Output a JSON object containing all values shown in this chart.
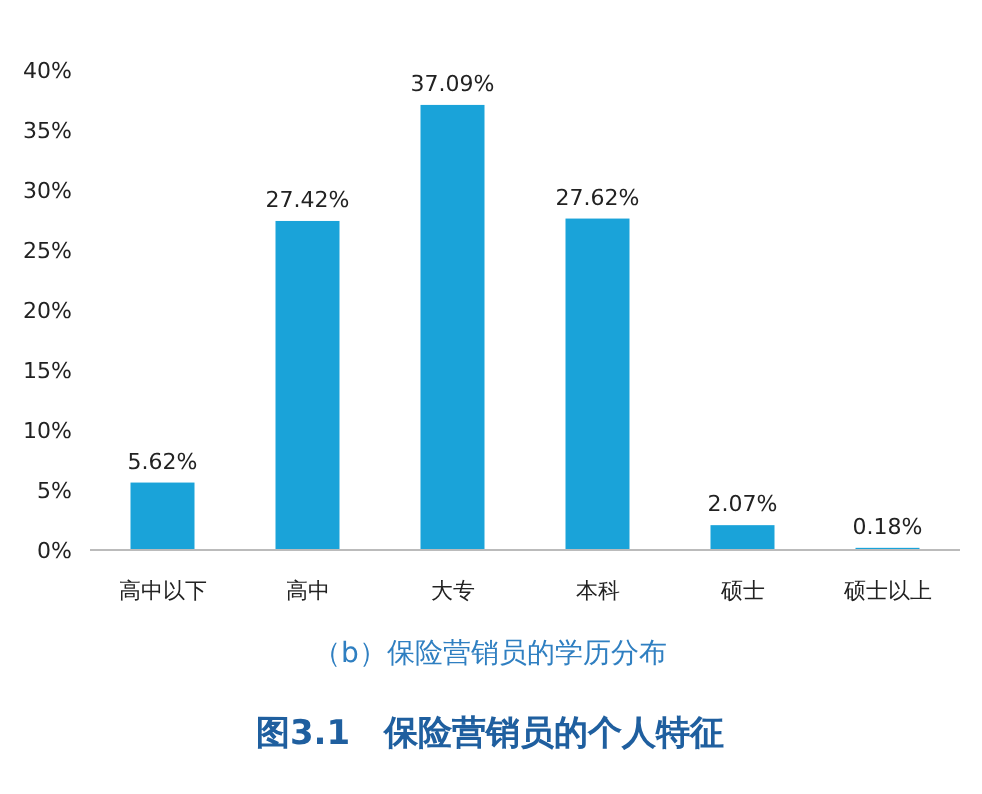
{
  "chart_data": {
    "type": "bar",
    "title": "图3.1　保险营销员的个人特征",
    "subtitle": "（b）保险营销员的学历分布",
    "categories": [
      "高中以下",
      "高中",
      "大专",
      "本科",
      "硕士",
      "硕士以上"
    ],
    "values": [
      5.62,
      27.42,
      37.09,
      27.62,
      2.07,
      0.18
    ],
    "value_labels": [
      "5.62%",
      "27.42%",
      "37.09%",
      "27.62%",
      "2.07%",
      "0.18%"
    ],
    "color": "#1aa3d9",
    "ylim": [
      0,
      40
    ],
    "yticks": [
      {
        "value": 0,
        "label": "0%"
      },
      {
        "value": 5,
        "label": "5%"
      },
      {
        "value": 10,
        "label": "10%"
      },
      {
        "value": 15,
        "label": "15%"
      },
      {
        "value": 20,
        "label": "20%"
      },
      {
        "value": 25,
        "label": "25%"
      },
      {
        "value": 30,
        "label": "30%"
      },
      {
        "value": 35,
        "label": "35%"
      },
      {
        "value": 40,
        "label": "40%"
      }
    ]
  }
}
